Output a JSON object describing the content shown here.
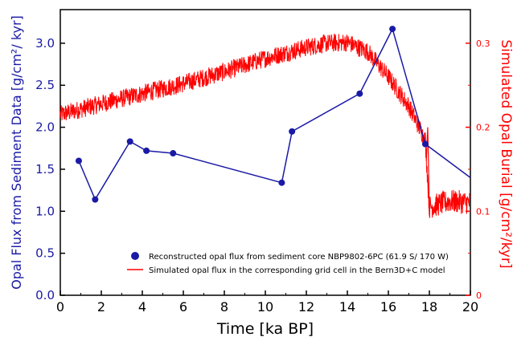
{
  "chart_data": {
    "type": "line",
    "xlabel": "Time [ka BP]",
    "xlim": [
      0,
      20
    ],
    "x_ticks": [
      0,
      2,
      4,
      6,
      8,
      10,
      12,
      14,
      16,
      18,
      20
    ],
    "left_axis": {
      "label": "Opal Flux from Sediment Data [g/cm²/ kyr]",
      "lim": [
        0,
        3.4
      ],
      "ticks": [
        0.0,
        0.5,
        1.0,
        1.5,
        2.0,
        2.5,
        3.0
      ],
      "tick_labels": [
        "0.0",
        "0.5",
        "1.0",
        "1.5",
        "2.0",
        "2.5",
        "3.0"
      ],
      "color": "#1a1aa6"
    },
    "right_axis": {
      "label": "Simulated Opal Burial [g/cm²/kyr]",
      "lim": [
        0,
        0.34
      ],
      "ticks": [
        0,
        0.1,
        0.2,
        0.3
      ],
      "tick_labels": [
        "0",
        "0.1",
        "0.2",
        "0.3"
      ],
      "color": "#ff0000"
    },
    "series": [
      {
        "name": "Reconstructed opal flux from sediment core NBP9802-6PC (61.9 S/ 170 W)",
        "axis": "left",
        "style": "line-markers",
        "color": "#1a1aa6",
        "x": [
          0.9,
          1.7,
          3.4,
          4.2,
          5.5,
          10.8,
          11.3,
          14.6,
          16.2,
          17.8,
          20
        ],
        "y": [
          1.6,
          1.14,
          1.83,
          1.72,
          1.69,
          1.34,
          1.95,
          2.4,
          3.17,
          1.8,
          1.4
        ]
      },
      {
        "name": "Simulated opal flux in the corresponding grid cell in the Bern3D+C model",
        "axis": "right",
        "style": "noisy-line",
        "color": "#ff0000",
        "x": [
          0,
          2,
          4,
          6,
          8,
          10,
          12,
          13,
          14,
          15,
          16,
          17,
          17.8,
          18,
          19,
          20
        ],
        "y": [
          0.215,
          0.228,
          0.24,
          0.252,
          0.266,
          0.282,
          0.295,
          0.3,
          0.301,
          0.29,
          0.26,
          0.225,
          0.185,
          0.105,
          0.112,
          0.11
        ]
      }
    ],
    "legend_position": "lower-center"
  }
}
